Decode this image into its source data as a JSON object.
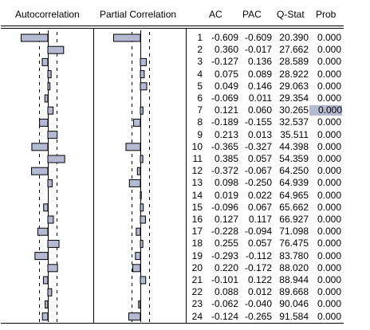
{
  "headers": {
    "autocorrelation": "Autocorrelation",
    "partial_correlation": "Partial Correlation",
    "ac": "AC",
    "pac": "PAC",
    "qstat": "Q-Stat",
    "prob": "Prob"
  },
  "colors": {
    "bar_fill": "#b6b9d2",
    "bar_stroke": "#000000",
    "highlight": "#b6b9d2"
  },
  "selected_row": 7,
  "rows": [
    {
      "lag": "1",
      "ac": "-0.609",
      "pac": "-0.609",
      "q": "20.390",
      "prob": "0.000"
    },
    {
      "lag": "2",
      "ac": "0.360",
      "pac": "-0.017",
      "q": "27.662",
      "prob": "0.000"
    },
    {
      "lag": "3",
      "ac": "-0.127",
      "pac": "0.136",
      "q": "28.589",
      "prob": "0.000"
    },
    {
      "lag": "4",
      "ac": "0.075",
      "pac": "0.089",
      "q": "28.922",
      "prob": "0.000"
    },
    {
      "lag": "5",
      "ac": "0.049",
      "pac": "0.146",
      "q": "29.063",
      "prob": "0.000"
    },
    {
      "lag": "6",
      "ac": "-0.069",
      "pac": "0.011",
      "q": "29.354",
      "prob": "0.000"
    },
    {
      "lag": "7",
      "ac": "0.121",
      "pac": "0.060",
      "q": "30.265",
      "prob": "0.000"
    },
    {
      "lag": "8",
      "ac": "-0.189",
      "pac": "-0.155",
      "q": "32.537",
      "prob": "0.000"
    },
    {
      "lag": "9",
      "ac": "0.213",
      "pac": "0.013",
      "q": "35.511",
      "prob": "0.000"
    },
    {
      "lag": "10",
      "ac": "-0.365",
      "pac": "-0.327",
      "q": "44.398",
      "prob": "0.000"
    },
    {
      "lag": "11",
      "ac": "0.385",
      "pac": "0.057",
      "q": "54.359",
      "prob": "0.000"
    },
    {
      "lag": "12",
      "ac": "-0.372",
      "pac": "-0.067",
      "q": "64.250",
      "prob": "0.000"
    },
    {
      "lag": "13",
      "ac": "0.098",
      "pac": "-0.250",
      "q": "64.939",
      "prob": "0.000"
    },
    {
      "lag": "14",
      "ac": "0.019",
      "pac": "0.022",
      "q": "64.965",
      "prob": "0.000"
    },
    {
      "lag": "15",
      "ac": "-0.096",
      "pac": "0.067",
      "q": "65.662",
      "prob": "0.000"
    },
    {
      "lag": "16",
      "ac": "0.127",
      "pac": "0.117",
      "q": "66.927",
      "prob": "0.000"
    },
    {
      "lag": "17",
      "ac": "-0.228",
      "pac": "-0.094",
      "q": "71.098",
      "prob": "0.000"
    },
    {
      "lag": "18",
      "ac": "0.255",
      "pac": "0.057",
      "q": "76.475",
      "prob": "0.000"
    },
    {
      "lag": "19",
      "ac": "-0.293",
      "pac": "-0.112",
      "q": "83.780",
      "prob": "0.000"
    },
    {
      "lag": "20",
      "ac": "0.220",
      "pac": "-0.172",
      "q": "88.020",
      "prob": "0.000"
    },
    {
      "lag": "21",
      "ac": "-0.101",
      "pac": "0.122",
      "q": "88.944",
      "prob": "0.000"
    },
    {
      "lag": "22",
      "ac": "0.088",
      "pac": "0.012",
      "q": "89.668",
      "prob": "0.000"
    },
    {
      "lag": "23",
      "ac": "-0.062",
      "pac": "-0.040",
      "q": "90.046",
      "prob": "0.000"
    },
    {
      "lag": "24",
      "ac": "-0.124",
      "pac": "-0.265",
      "q": "91.584",
      "prob": "0.000"
    }
  ]
}
